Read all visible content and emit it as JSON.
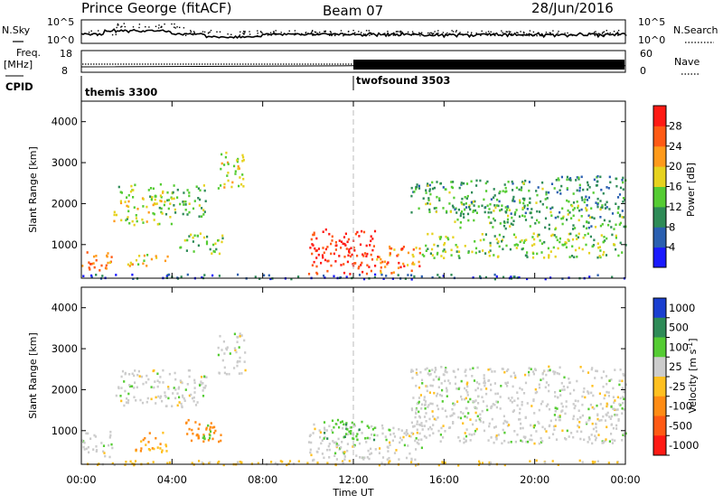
{
  "header": {
    "station": "Prince George (fitACF)",
    "beam": "Beam 07",
    "date": "28/Jun/2016"
  },
  "noise_panel": {
    "left_label": "N.Sky",
    "right_label": "N.Search",
    "left_ticks": [
      "10^5",
      "10^0"
    ],
    "right_ticks": [
      "10^5",
      "10^0"
    ]
  },
  "freq_panel": {
    "label_line1": "Freq.",
    "label_line2": "[MHz]",
    "right_label": "Nave",
    "left_ticks": [
      "18",
      "8"
    ],
    "right_ticks": [
      "60",
      "0"
    ]
  },
  "cpid": {
    "label": "CPID",
    "modes": [
      {
        "name": "themis 3300",
        "start_hour": 0
      },
      {
        "name": "twofsound 3503",
        "start_hour": 12
      }
    ]
  },
  "axes": {
    "ylabel": "Slant Range [km]",
    "xlabel": "Time UT",
    "y_ticks": [
      "1000",
      "2000",
      "3000",
      "4000"
    ],
    "x_ticks": [
      "00:00",
      "04:00",
      "08:00",
      "12:00",
      "16:00",
      "20:00",
      "00:00"
    ]
  },
  "power_colorbar": {
    "title": "Power [dB]",
    "ticks": [
      "4",
      "8",
      "12",
      "16",
      "20",
      "24",
      "28"
    ],
    "colors": [
      "#1a1aff",
      "#2a5fb0",
      "#2e8b57",
      "#55cc33",
      "#e6d21e",
      "#ff9a1a",
      "#ff5a14",
      "#ff1a14"
    ]
  },
  "velocity_colorbar": {
    "title": "Velocity [m s^-1]",
    "ticks": [
      "1000",
      "500",
      "100",
      "25",
      "-25",
      "-100",
      "-500",
      "-1000"
    ],
    "colors": [
      "#1a3fd0",
      "#2e8b57",
      "#55cc33",
      "#cccccc",
      "#ffc020",
      "#ff8c14",
      "#ff5a14",
      "#ff1a14"
    ]
  },
  "chart_data": [
    {
      "type": "heatmap",
      "title": "Power [dB]",
      "xlabel": "Time UT",
      "ylabel": "Slant Range [km]",
      "xlim": [
        0,
        24
      ],
      "ylim": [
        180,
        4500
      ],
      "zlim": [
        0,
        30
      ],
      "echo_regions": [
        {
          "t0": 0.0,
          "t1": 1.3,
          "r0": 350,
          "r1": 900,
          "power": 24
        },
        {
          "t0": 1.4,
          "t1": 4.0,
          "r0": 1500,
          "r1": 2500,
          "power": 16
        },
        {
          "t0": 2.0,
          "t1": 3.8,
          "r0": 500,
          "r1": 800,
          "power": 20
        },
        {
          "t0": 4.0,
          "t1": 5.5,
          "r0": 1700,
          "r1": 2500,
          "power": 13
        },
        {
          "t0": 4.3,
          "t1": 6.2,
          "r0": 800,
          "r1": 1300,
          "power": 14
        },
        {
          "t0": 6.0,
          "t1": 7.2,
          "r0": 2400,
          "r1": 3300,
          "power": 16
        },
        {
          "t0": 10.0,
          "t1": 13.0,
          "r0": 300,
          "r1": 1400,
          "power": 29
        },
        {
          "t0": 13.0,
          "t1": 15.0,
          "r0": 300,
          "r1": 1000,
          "power": 24
        },
        {
          "t0": 14.5,
          "t1": 20.5,
          "r0": 1800,
          "r1": 2600,
          "power": 12
        },
        {
          "t0": 15.0,
          "t1": 24.0,
          "r0": 700,
          "r1": 1300,
          "power": 15
        },
        {
          "t0": 16.0,
          "t1": 24.0,
          "r0": 1400,
          "r1": 2000,
          "power": 12
        },
        {
          "t0": 20.5,
          "t1": 24.0,
          "r0": 2000,
          "r1": 2700,
          "power": 10
        },
        {
          "t0": 0.0,
          "t1": 24.0,
          "r0": 180,
          "r1": 300,
          "power": 6
        }
      ]
    },
    {
      "type": "heatmap",
      "title": "Velocity [m s^-1]",
      "xlabel": "Time UT",
      "ylabel": "Slant Range [km]",
      "xlim": [
        0,
        24
      ],
      "ylim": [
        180,
        4500
      ],
      "zlim": [
        -1000,
        1000
      ],
      "echo_regions": [
        {
          "t0": 0.0,
          "t1": 1.4,
          "r0": 350,
          "r1": 1000,
          "velocity": 0
        },
        {
          "t0": 1.4,
          "t1": 5.5,
          "r0": 1600,
          "r1": 2500,
          "velocity": 0
        },
        {
          "t0": 2.3,
          "t1": 3.8,
          "r0": 500,
          "r1": 1000,
          "velocity": -100
        },
        {
          "t0": 4.5,
          "t1": 6.2,
          "r0": 700,
          "r1": 1300,
          "velocity": -150
        },
        {
          "t0": 5.3,
          "t1": 5.8,
          "r0": 800,
          "r1": 1200,
          "velocity": 60
        },
        {
          "t0": 6.0,
          "t1": 7.2,
          "r0": 2400,
          "r1": 3400,
          "velocity": 0
        },
        {
          "t0": 10.0,
          "t1": 15.0,
          "r0": 300,
          "r1": 1200,
          "velocity": 0
        },
        {
          "t0": 10.6,
          "t1": 13.0,
          "r0": 800,
          "r1": 1300,
          "velocity": 80
        },
        {
          "t0": 14.5,
          "t1": 24.0,
          "r0": 700,
          "r1": 2600,
          "velocity": 0
        },
        {
          "t0": 0.0,
          "t1": 24.0,
          "r0": 180,
          "r1": 300,
          "velocity": -40
        }
      ]
    },
    {
      "type": "line",
      "title": "Freq. [MHz]",
      "x": [
        0,
        12,
        24
      ],
      "series": [
        {
          "name": "Freq.",
          "values": [
            10.5,
            11,
            11
          ]
        }
      ],
      "ylim": [
        8,
        18
      ]
    }
  ]
}
